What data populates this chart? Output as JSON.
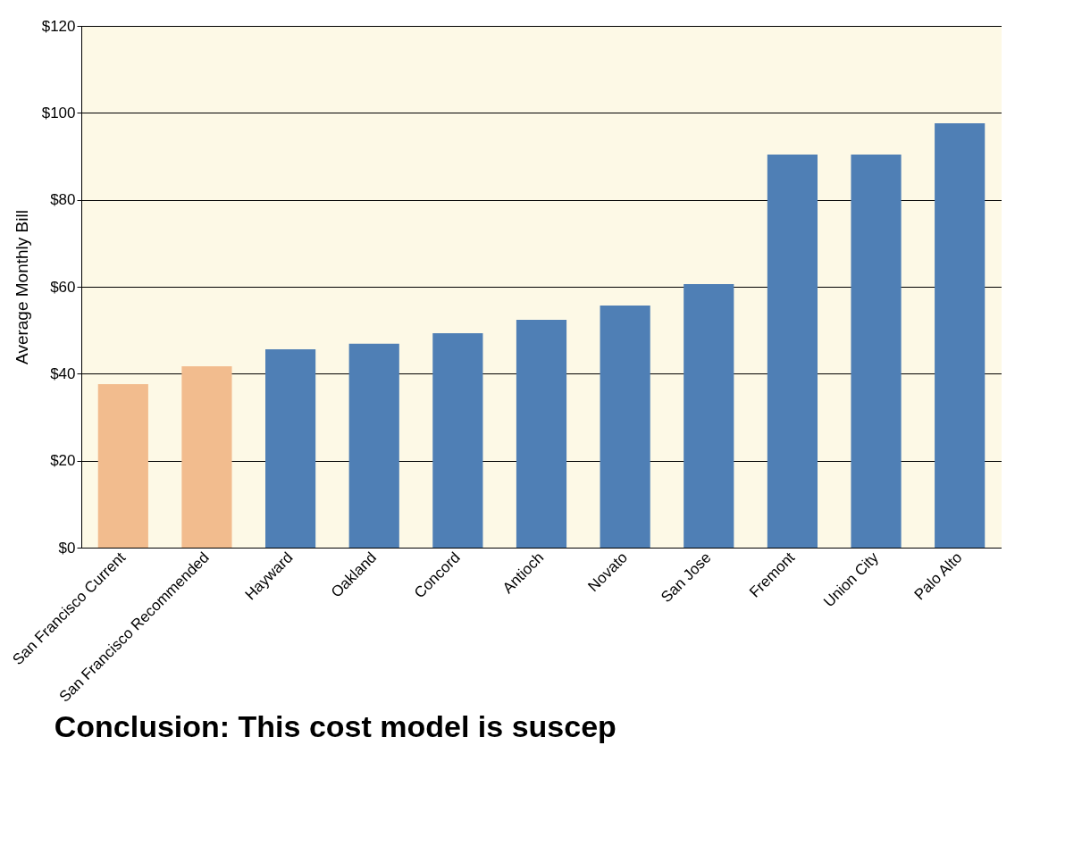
{
  "chart_data": {
    "type": "bar",
    "ylabel": "Average Monthly Bill",
    "categories": [
      "San Francisco Current",
      "San Francisco Recommended",
      "Hayward",
      "Oakland",
      "Concord",
      "Antioch",
      "Novato",
      "San Jose",
      "Fremont",
      "Union City",
      "Palo Alto"
    ],
    "values": [
      37.6,
      41.7,
      45.6,
      46.9,
      49.3,
      52.4,
      55.7,
      60.6,
      90.4,
      90.4,
      97.6
    ],
    "colors": [
      "#f2bc8e",
      "#f2bc8e",
      "#4f7fb5",
      "#4f7fb5",
      "#4f7fb5",
      "#4f7fb5",
      "#4f7fb5",
      "#4f7fb5",
      "#4f7fb5",
      "#4f7fb5",
      "#4f7fb5"
    ],
    "ylim": [
      0,
      120
    ],
    "yticks": [
      {
        "value": 0,
        "label": "$0"
      },
      {
        "value": 20,
        "label": "$20"
      },
      {
        "value": 40,
        "label": "$40"
      },
      {
        "value": 60,
        "label": "$60"
      },
      {
        "value": 80,
        "label": "$80"
      },
      {
        "value": 100,
        "label": "$100"
      },
      {
        "value": 120,
        "label": "$120"
      }
    ],
    "grid": "y",
    "annotations": [
      "Conclusion:  This cost model is suscep"
    ]
  }
}
